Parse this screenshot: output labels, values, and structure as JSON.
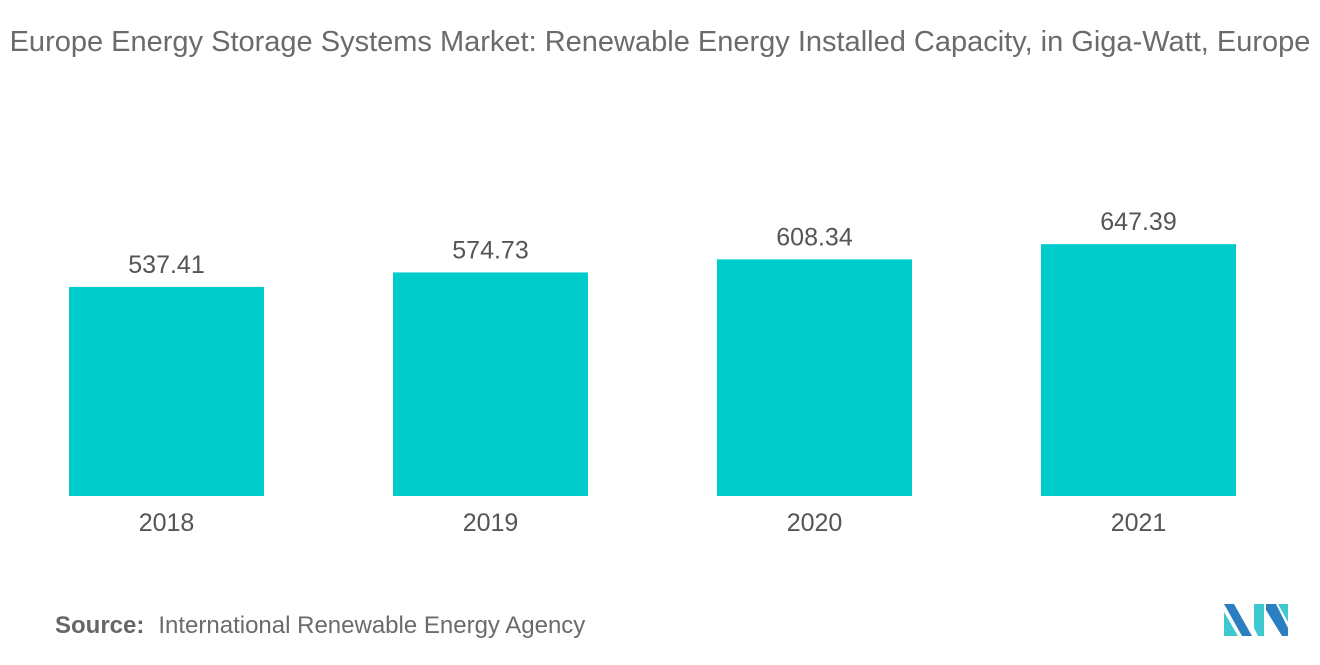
{
  "chart_data": {
    "type": "bar",
    "title": "Europe Energy Storage Systems Market: Renewable Energy Installed Capacity, in Giga-Watt, Europe",
    "categories": [
      "2018",
      "2019",
      "2020",
      "2021"
    ],
    "values": [
      537.41,
      574.73,
      608.34,
      647.39
    ],
    "value_labels": [
      "537.41",
      "574.73",
      "608.34",
      "647.39"
    ],
    "xlabel": "",
    "ylabel": "",
    "ylim": [
      0,
      700
    ],
    "grid": false,
    "y_axis_visible": false,
    "bar_color": "#00cccc"
  },
  "source": {
    "label": "Source:",
    "text": "International Renewable Energy Agency"
  },
  "colors": {
    "text": "#6b6b6b",
    "logo_dark": "#2b7fc0",
    "logo_light": "#3ec8d0"
  }
}
